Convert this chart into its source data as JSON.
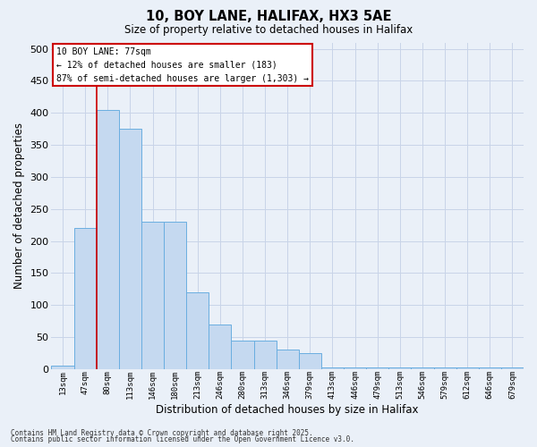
{
  "title1": "10, BOY LANE, HALIFAX, HX3 5AE",
  "title2": "Size of property relative to detached houses in Halifax",
  "xlabel": "Distribution of detached houses by size in Halifax",
  "ylabel": "Number of detached properties",
  "categories": [
    "13sqm",
    "47sqm",
    "80sqm",
    "113sqm",
    "146sqm",
    "180sqm",
    "213sqm",
    "246sqm",
    "280sqm",
    "313sqm",
    "346sqm",
    "379sqm",
    "413sqm",
    "446sqm",
    "479sqm",
    "513sqm",
    "546sqm",
    "579sqm",
    "612sqm",
    "646sqm",
    "679sqm"
  ],
  "values": [
    5,
    220,
    405,
    375,
    230,
    230,
    120,
    70,
    45,
    45,
    30,
    25,
    3,
    3,
    3,
    3,
    3,
    3,
    3,
    3,
    3
  ],
  "bar_color": "#c5d9f0",
  "bar_edge_color": "#6aaee0",
  "grid_color": "#c8d4e8",
  "bg_color": "#eaf0f8",
  "red_line_x": 2.0,
  "annotation_line1": "10 BOY LANE: 77sqm",
  "annotation_line2": "← 12% of detached houses are smaller (183)",
  "annotation_line3": "87% of semi-detached houses are larger (1,303) →",
  "annotation_box_color": "#ffffff",
  "annotation_box_edge": "#cc0000",
  "footer1": "Contains HM Land Registry data © Crown copyright and database right 2025.",
  "footer2": "Contains public sector information licensed under the Open Government Licence v3.0.",
  "ylim_max": 510,
  "yticks": [
    0,
    50,
    100,
    150,
    200,
    250,
    300,
    350,
    400,
    450,
    500
  ]
}
